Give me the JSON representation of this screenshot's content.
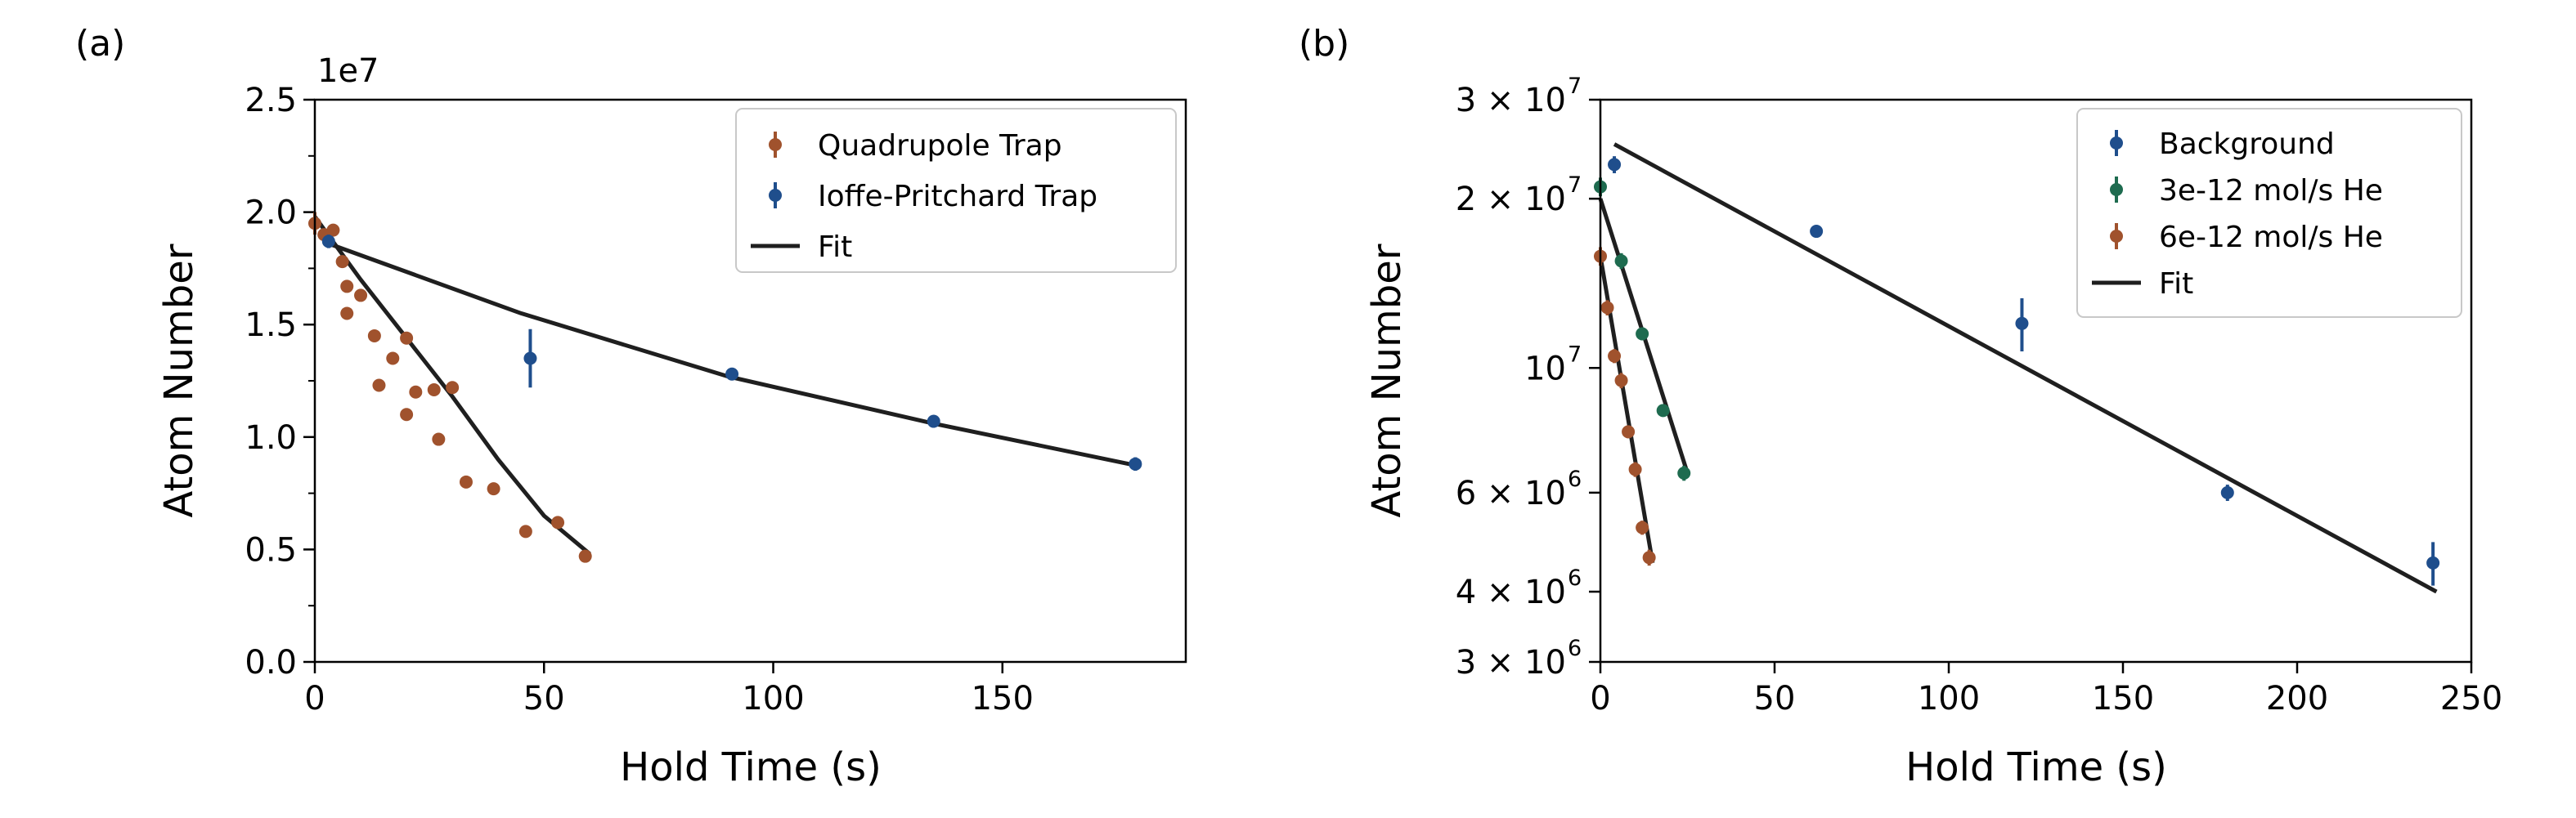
{
  "chart_data": [
    {
      "panel_label": "(a)",
      "type": "scatter",
      "xlabel": "Hold Time (s)",
      "ylabel": "Atom Number",
      "offset_text": "1e7",
      "xlim": [
        0,
        190
      ],
      "ylim": [
        0,
        25000000
      ],
      "xticks": [
        0,
        50,
        100,
        150
      ],
      "xtick_labels": [
        "0",
        "50",
        "100",
        "150"
      ],
      "yticks": [
        0,
        5000000,
        10000000,
        15000000,
        20000000,
        25000000
      ],
      "ytick_labels": [
        "0.0",
        "0.5",
        "1.0",
        "1.5",
        "2.0",
        "2.5"
      ],
      "yscale": "linear",
      "legend_position": "upper-right",
      "grid": false,
      "legend": [
        {
          "label": "Quadrupole Trap",
          "marker": "errorbar",
          "color": "#a0522d"
        },
        {
          "label": "Ioffe-Pritchard Trap",
          "marker": "errorbar",
          "color": "#1f4e8c"
        },
        {
          "label": "Fit",
          "marker": "line",
          "color": "#1f1f1f"
        }
      ],
      "series": [
        {
          "name": "Quadrupole Trap",
          "color": "#a0522d",
          "points": [
            {
              "x": 0,
              "y": 19500000,
              "err": 500000
            },
            {
              "x": 2,
              "y": 19000000,
              "err": 0
            },
            {
              "x": 4,
              "y": 19200000,
              "err": 0
            },
            {
              "x": 6,
              "y": 17800000,
              "err": 0
            },
            {
              "x": 7,
              "y": 16700000,
              "err": 0
            },
            {
              "x": 7,
              "y": 15500000,
              "err": 0
            },
            {
              "x": 10,
              "y": 16300000,
              "err": 0
            },
            {
              "x": 13,
              "y": 14500000,
              "err": 0
            },
            {
              "x": 14,
              "y": 12300000,
              "err": 0
            },
            {
              "x": 17,
              "y": 13500000,
              "err": 0
            },
            {
              "x": 20,
              "y": 14400000,
              "err": 0
            },
            {
              "x": 20,
              "y": 11000000,
              "err": 0
            },
            {
              "x": 22,
              "y": 12000000,
              "err": 0
            },
            {
              "x": 26,
              "y": 12100000,
              "err": 0
            },
            {
              "x": 27,
              "y": 9900000,
              "err": 0
            },
            {
              "x": 30,
              "y": 12200000,
              "err": 0
            },
            {
              "x": 33,
              "y": 8000000,
              "err": 0
            },
            {
              "x": 39,
              "y": 7700000,
              "err": 0
            },
            {
              "x": 46,
              "y": 5800000,
              "err": 0
            },
            {
              "x": 53,
              "y": 6200000,
              "err": 0
            },
            {
              "x": 59,
              "y": 4700000,
              "err": 0
            }
          ]
        },
        {
          "name": "Ioffe-Pritchard Trap",
          "color": "#1f4e8c",
          "points": [
            {
              "x": 3,
              "y": 18700000,
              "err": 300000
            },
            {
              "x": 47,
              "y": 13500000,
              "err": 1300000
            },
            {
              "x": 91,
              "y": 12800000,
              "err": 200000
            },
            {
              "x": 135,
              "y": 10700000,
              "err": 200000
            },
            {
              "x": 179,
              "y": 8800000,
              "err": 300000
            }
          ]
        }
      ],
      "fits": [
        {
          "name": "Fit",
          "color": "#1f1f1f",
          "x": [
            0,
            10,
            20,
            30,
            40,
            50,
            60
          ],
          "y": [
            19800000,
            17000000,
            14400000,
            11800000,
            9000000,
            6500000,
            4800000
          ]
        },
        {
          "name": "Fit",
          "color": "#1f1f1f",
          "x": [
            3,
            45,
            90,
            135,
            180
          ],
          "y": [
            18600000,
            15500000,
            12700000,
            10600000,
            8700000
          ]
        }
      ]
    },
    {
      "panel_label": "(b)",
      "type": "scatter",
      "xlabel": "Hold Time (s)",
      "ylabel": "Atom Number",
      "xlim": [
        0,
        250
      ],
      "ylim": [
        3000000,
        30000000
      ],
      "yscale": "log",
      "xticks": [
        0,
        50,
        100,
        150,
        200,
        250
      ],
      "xtick_labels": [
        "0",
        "50",
        "100",
        "150",
        "200",
        "250"
      ],
      "yticks": [
        3000000,
        4000000,
        6000000,
        10000000,
        20000000,
        30000000
      ],
      "ytick_mantissa": [
        "3",
        "4",
        "6",
        "",
        "2",
        "3"
      ],
      "ytick_exponent": [
        "6",
        "6",
        "6",
        "7",
        "7",
        "7"
      ],
      "legend_position": "upper-right",
      "grid": false,
      "legend": [
        {
          "label": "Background",
          "marker": "errorbar",
          "color": "#1f4e8c"
        },
        {
          "label": "3e-12 mol/s He",
          "marker": "errorbar",
          "color": "#1e6b4f"
        },
        {
          "label": "6e-12 mol/s He",
          "marker": "errorbar",
          "color": "#a0522d"
        },
        {
          "label": "Fit",
          "marker": "line",
          "color": "#1f1f1f"
        }
      ],
      "series": [
        {
          "name": "Background",
          "color": "#1f4e8c",
          "points": [
            {
              "x": 4,
              "y": 23000000,
              "err": 800000
            },
            {
              "x": 62,
              "y": 17500000,
              "err": 400000
            },
            {
              "x": 121,
              "y": 12000000,
              "err": 1300000
            },
            {
              "x": 180,
              "y": 6000000,
              "err": 200000
            },
            {
              "x": 239,
              "y": 4500000,
              "err": 400000
            }
          ]
        },
        {
          "name": "3e-12 mol/s He",
          "color": "#1e6b4f",
          "points": [
            {
              "x": 0,
              "y": 21000000,
              "err": 800000
            },
            {
              "x": 6,
              "y": 15500000,
              "err": 500000
            },
            {
              "x": 12,
              "y": 11500000,
              "err": 300000
            },
            {
              "x": 18,
              "y": 8400000,
              "err": 200000
            },
            {
              "x": 24,
              "y": 6500000,
              "err": 200000
            }
          ]
        },
        {
          "name": "6e-12 mol/s He",
          "color": "#a0522d",
          "points": [
            {
              "x": 0,
              "y": 15800000,
              "err": 600000
            },
            {
              "x": 2,
              "y": 12800000,
              "err": 400000
            },
            {
              "x": 4,
              "y": 10500000,
              "err": 300000
            },
            {
              "x": 6,
              "y": 9500000,
              "err": 300000
            },
            {
              "x": 8,
              "y": 7700000,
              "err": 200000
            },
            {
              "x": 10,
              "y": 6600000,
              "err": 200000
            },
            {
              "x": 12,
              "y": 5200000,
              "err": 150000
            },
            {
              "x": 14,
              "y": 4600000,
              "err": 150000
            }
          ]
        }
      ],
      "fits": [
        {
          "name": "Fit",
          "color": "#1f1f1f",
          "x": [
            4,
            240
          ],
          "y": [
            25000000,
            4000000
          ]
        },
        {
          "name": "Fit",
          "color": "#1f1f1f",
          "x": [
            0,
            25
          ],
          "y": [
            20000000,
            6500000
          ]
        },
        {
          "name": "Fit",
          "color": "#1f1f1f",
          "x": [
            0,
            15
          ],
          "y": [
            15800000,
            4500000
          ]
        }
      ]
    }
  ]
}
